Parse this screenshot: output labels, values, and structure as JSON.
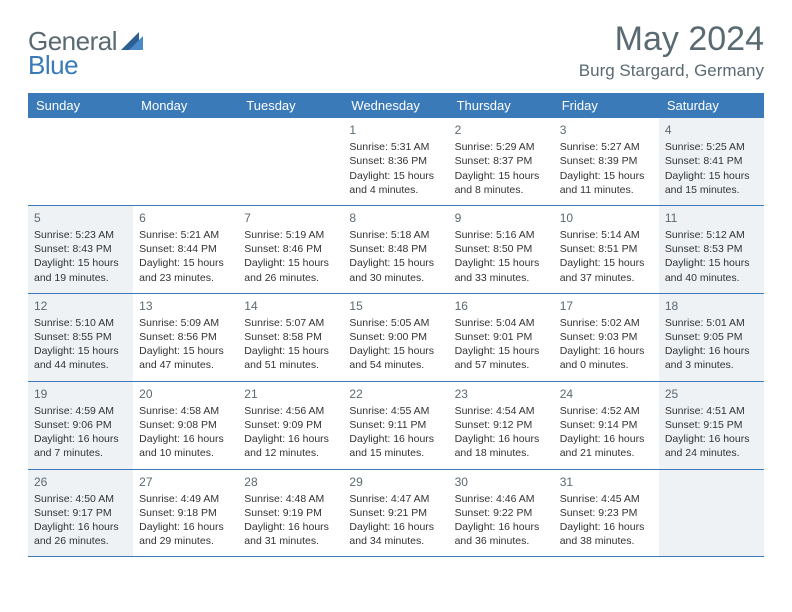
{
  "logo": {
    "text1": "General",
    "text2": "Blue"
  },
  "title": "May 2024",
  "location": "Burg Stargard, Germany",
  "day_headers": [
    "Sunday",
    "Monday",
    "Tuesday",
    "Wednesday",
    "Thursday",
    "Friday",
    "Saturday"
  ],
  "colors": {
    "header_bg": "#3a7ab8",
    "header_text": "#ffffff",
    "shaded_bg": "#eef2f5",
    "text": "#333333",
    "title_color": "#5a6a72",
    "border": "#3a7ab8"
  },
  "weeks": [
    [
      {
        "day": "",
        "sunrise": "",
        "sunset": "",
        "daylight": "",
        "shaded": false,
        "empty": true
      },
      {
        "day": "",
        "sunrise": "",
        "sunset": "",
        "daylight": "",
        "shaded": false,
        "empty": true
      },
      {
        "day": "",
        "sunrise": "",
        "sunset": "",
        "daylight": "",
        "shaded": false,
        "empty": true
      },
      {
        "day": "1",
        "sunrise": "Sunrise: 5:31 AM",
        "sunset": "Sunset: 8:36 PM",
        "daylight": "Daylight: 15 hours and 4 minutes.",
        "shaded": false
      },
      {
        "day": "2",
        "sunrise": "Sunrise: 5:29 AM",
        "sunset": "Sunset: 8:37 PM",
        "daylight": "Daylight: 15 hours and 8 minutes.",
        "shaded": false
      },
      {
        "day": "3",
        "sunrise": "Sunrise: 5:27 AM",
        "sunset": "Sunset: 8:39 PM",
        "daylight": "Daylight: 15 hours and 11 minutes.",
        "shaded": false
      },
      {
        "day": "4",
        "sunrise": "Sunrise: 5:25 AM",
        "sunset": "Sunset: 8:41 PM",
        "daylight": "Daylight: 15 hours and 15 minutes.",
        "shaded": true
      }
    ],
    [
      {
        "day": "5",
        "sunrise": "Sunrise: 5:23 AM",
        "sunset": "Sunset: 8:43 PM",
        "daylight": "Daylight: 15 hours and 19 minutes.",
        "shaded": true
      },
      {
        "day": "6",
        "sunrise": "Sunrise: 5:21 AM",
        "sunset": "Sunset: 8:44 PM",
        "daylight": "Daylight: 15 hours and 23 minutes.",
        "shaded": false
      },
      {
        "day": "7",
        "sunrise": "Sunrise: 5:19 AM",
        "sunset": "Sunset: 8:46 PM",
        "daylight": "Daylight: 15 hours and 26 minutes.",
        "shaded": false
      },
      {
        "day": "8",
        "sunrise": "Sunrise: 5:18 AM",
        "sunset": "Sunset: 8:48 PM",
        "daylight": "Daylight: 15 hours and 30 minutes.",
        "shaded": false
      },
      {
        "day": "9",
        "sunrise": "Sunrise: 5:16 AM",
        "sunset": "Sunset: 8:50 PM",
        "daylight": "Daylight: 15 hours and 33 minutes.",
        "shaded": false
      },
      {
        "day": "10",
        "sunrise": "Sunrise: 5:14 AM",
        "sunset": "Sunset: 8:51 PM",
        "daylight": "Daylight: 15 hours and 37 minutes.",
        "shaded": false
      },
      {
        "day": "11",
        "sunrise": "Sunrise: 5:12 AM",
        "sunset": "Sunset: 8:53 PM",
        "daylight": "Daylight: 15 hours and 40 minutes.",
        "shaded": true
      }
    ],
    [
      {
        "day": "12",
        "sunrise": "Sunrise: 5:10 AM",
        "sunset": "Sunset: 8:55 PM",
        "daylight": "Daylight: 15 hours and 44 minutes.",
        "shaded": true
      },
      {
        "day": "13",
        "sunrise": "Sunrise: 5:09 AM",
        "sunset": "Sunset: 8:56 PM",
        "daylight": "Daylight: 15 hours and 47 minutes.",
        "shaded": false
      },
      {
        "day": "14",
        "sunrise": "Sunrise: 5:07 AM",
        "sunset": "Sunset: 8:58 PM",
        "daylight": "Daylight: 15 hours and 51 minutes.",
        "shaded": false
      },
      {
        "day": "15",
        "sunrise": "Sunrise: 5:05 AM",
        "sunset": "Sunset: 9:00 PM",
        "daylight": "Daylight: 15 hours and 54 minutes.",
        "shaded": false
      },
      {
        "day": "16",
        "sunrise": "Sunrise: 5:04 AM",
        "sunset": "Sunset: 9:01 PM",
        "daylight": "Daylight: 15 hours and 57 minutes.",
        "shaded": false
      },
      {
        "day": "17",
        "sunrise": "Sunrise: 5:02 AM",
        "sunset": "Sunset: 9:03 PM",
        "daylight": "Daylight: 16 hours and 0 minutes.",
        "shaded": false
      },
      {
        "day": "18",
        "sunrise": "Sunrise: 5:01 AM",
        "sunset": "Sunset: 9:05 PM",
        "daylight": "Daylight: 16 hours and 3 minutes.",
        "shaded": true
      }
    ],
    [
      {
        "day": "19",
        "sunrise": "Sunrise: 4:59 AM",
        "sunset": "Sunset: 9:06 PM",
        "daylight": "Daylight: 16 hours and 7 minutes.",
        "shaded": true
      },
      {
        "day": "20",
        "sunrise": "Sunrise: 4:58 AM",
        "sunset": "Sunset: 9:08 PM",
        "daylight": "Daylight: 16 hours and 10 minutes.",
        "shaded": false
      },
      {
        "day": "21",
        "sunrise": "Sunrise: 4:56 AM",
        "sunset": "Sunset: 9:09 PM",
        "daylight": "Daylight: 16 hours and 12 minutes.",
        "shaded": false
      },
      {
        "day": "22",
        "sunrise": "Sunrise: 4:55 AM",
        "sunset": "Sunset: 9:11 PM",
        "daylight": "Daylight: 16 hours and 15 minutes.",
        "shaded": false
      },
      {
        "day": "23",
        "sunrise": "Sunrise: 4:54 AM",
        "sunset": "Sunset: 9:12 PM",
        "daylight": "Daylight: 16 hours and 18 minutes.",
        "shaded": false
      },
      {
        "day": "24",
        "sunrise": "Sunrise: 4:52 AM",
        "sunset": "Sunset: 9:14 PM",
        "daylight": "Daylight: 16 hours and 21 minutes.",
        "shaded": false
      },
      {
        "day": "25",
        "sunrise": "Sunrise: 4:51 AM",
        "sunset": "Sunset: 9:15 PM",
        "daylight": "Daylight: 16 hours and 24 minutes.",
        "shaded": true
      }
    ],
    [
      {
        "day": "26",
        "sunrise": "Sunrise: 4:50 AM",
        "sunset": "Sunset: 9:17 PM",
        "daylight": "Daylight: 16 hours and 26 minutes.",
        "shaded": true
      },
      {
        "day": "27",
        "sunrise": "Sunrise: 4:49 AM",
        "sunset": "Sunset: 9:18 PM",
        "daylight": "Daylight: 16 hours and 29 minutes.",
        "shaded": false
      },
      {
        "day": "28",
        "sunrise": "Sunrise: 4:48 AM",
        "sunset": "Sunset: 9:19 PM",
        "daylight": "Daylight: 16 hours and 31 minutes.",
        "shaded": false
      },
      {
        "day": "29",
        "sunrise": "Sunrise: 4:47 AM",
        "sunset": "Sunset: 9:21 PM",
        "daylight": "Daylight: 16 hours and 34 minutes.",
        "shaded": false
      },
      {
        "day": "30",
        "sunrise": "Sunrise: 4:46 AM",
        "sunset": "Sunset: 9:22 PM",
        "daylight": "Daylight: 16 hours and 36 minutes.",
        "shaded": false
      },
      {
        "day": "31",
        "sunrise": "Sunrise: 4:45 AM",
        "sunset": "Sunset: 9:23 PM",
        "daylight": "Daylight: 16 hours and 38 minutes.",
        "shaded": false
      },
      {
        "day": "",
        "sunrise": "",
        "sunset": "",
        "daylight": "",
        "shaded": true,
        "empty": true
      }
    ]
  ]
}
